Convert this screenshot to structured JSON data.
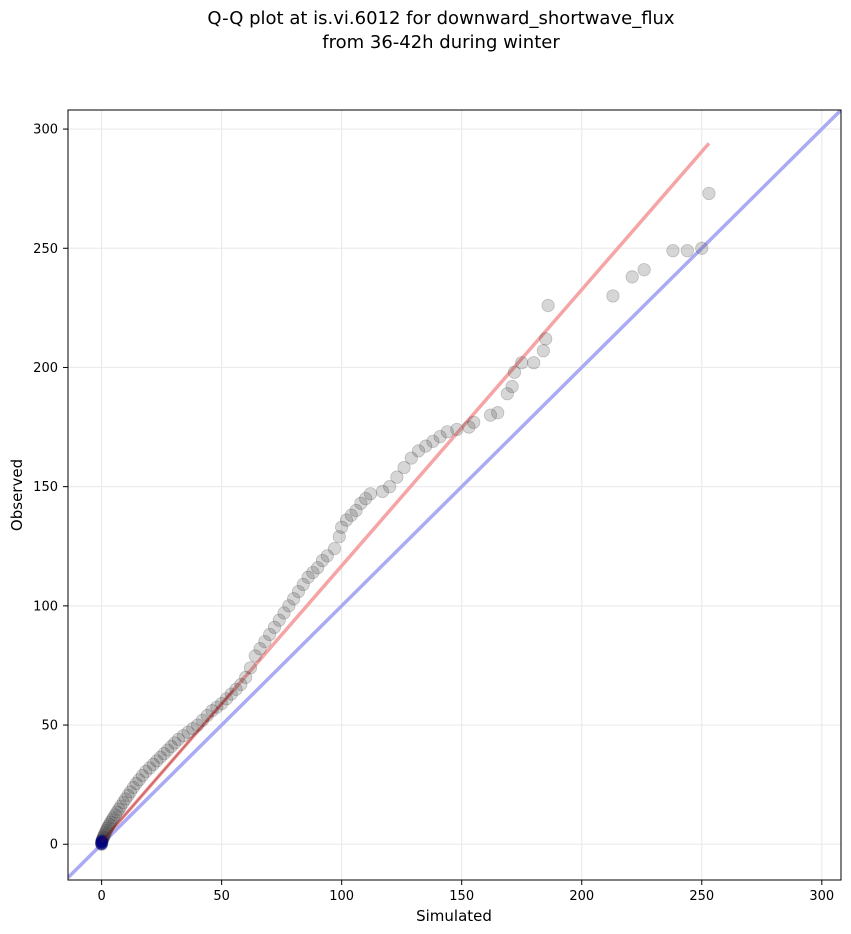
{
  "chart_data": {
    "type": "scatter",
    "title": [
      "Q-Q plot at is.vi.6012 for downward_shortwave_flux",
      "from 36-42h during winter"
    ],
    "xlabel": "Simulated",
    "ylabel": "Observed",
    "xlim": [
      -14,
      308
    ],
    "ylim": [
      -15,
      308
    ],
    "xticks": [
      0,
      50,
      100,
      150,
      200,
      250,
      300
    ],
    "yticks": [
      0,
      50,
      100,
      150,
      200,
      250,
      300
    ],
    "grid": true,
    "colors": {
      "points": "#333333",
      "points_low_fill": "#000080",
      "identity_line": "#aaaaf5",
      "fit_line": "#f5a5a5",
      "fit_overlay": "#8b0000",
      "grid": "#ebebeb"
    },
    "identity_line": {
      "from": [
        -14,
        -14
      ],
      "to": [
        308,
        308
      ]
    },
    "fit_line": {
      "from": [
        0,
        1
      ],
      "to": [
        253,
        294
      ]
    },
    "series": [
      {
        "values": [
          [
            0,
            0
          ],
          [
            0,
            0.5
          ],
          [
            0,
            1
          ],
          [
            0.2,
            1.5
          ],
          [
            0.4,
            2
          ],
          [
            0.6,
            2.5
          ],
          [
            0.8,
            3
          ],
          [
            1,
            3.5
          ],
          [
            1.3,
            4.2
          ],
          [
            1.6,
            5
          ],
          [
            2,
            5.8
          ],
          [
            2.4,
            6.6
          ],
          [
            2.8,
            7.4
          ],
          [
            3.3,
            8.3
          ],
          [
            3.8,
            9.2
          ],
          [
            4.4,
            10.2
          ],
          [
            5,
            11.2
          ],
          [
            5.7,
            12.3
          ],
          [
            6.4,
            13.5
          ],
          [
            7.2,
            14.7
          ],
          [
            8,
            16
          ],
          [
            9,
            17.5
          ],
          [
            10,
            19
          ],
          [
            11,
            20.5
          ],
          [
            12,
            22
          ],
          [
            13.2,
            23.8
          ],
          [
            14.4,
            25.5
          ],
          [
            15.6,
            27
          ],
          [
            17,
            28.8
          ],
          [
            18.4,
            30.5
          ],
          [
            20,
            32
          ],
          [
            21.5,
            33.5
          ],
          [
            23,
            35
          ],
          [
            24.5,
            36.5
          ],
          [
            26,
            38
          ],
          [
            27.5,
            39.5
          ],
          [
            29,
            41
          ],
          [
            30.5,
            42.5
          ],
          [
            32,
            44
          ],
          [
            34,
            45.5
          ],
          [
            36,
            47
          ],
          [
            38,
            48.5
          ],
          [
            40,
            50
          ],
          [
            42,
            52
          ],
          [
            44,
            54
          ],
          [
            46,
            56
          ],
          [
            48,
            57.5
          ],
          [
            50,
            59
          ],
          [
            52,
            61
          ],
          [
            54,
            63
          ],
          [
            56,
            65
          ],
          [
            58,
            67
          ],
          [
            60,
            70
          ],
          [
            62,
            74
          ],
          [
            64,
            79
          ],
          [
            66,
            82
          ],
          [
            68,
            85
          ],
          [
            70,
            88
          ],
          [
            72,
            91
          ],
          [
            74,
            94
          ],
          [
            76,
            97
          ],
          [
            78,
            100
          ],
          [
            80,
            103
          ],
          [
            82,
            106
          ],
          [
            84,
            109
          ],
          [
            86,
            112
          ],
          [
            88,
            114
          ],
          [
            90,
            116
          ],
          [
            92,
            119
          ],
          [
            94,
            121
          ],
          [
            97,
            124
          ],
          [
            99,
            129
          ],
          [
            100,
            133
          ],
          [
            102,
            136
          ],
          [
            104,
            138
          ],
          [
            106,
            140
          ],
          [
            108,
            143
          ],
          [
            110,
            145
          ],
          [
            112,
            147
          ],
          [
            117,
            148
          ],
          [
            120,
            150
          ],
          [
            123,
            154
          ],
          [
            126,
            158
          ],
          [
            129,
            162
          ],
          [
            132,
            165
          ],
          [
            135,
            167
          ],
          [
            138,
            169
          ],
          [
            141,
            171
          ],
          [
            144,
            173
          ],
          [
            148,
            174
          ],
          [
            153,
            175
          ],
          [
            155,
            177
          ],
          [
            162,
            180
          ],
          [
            165,
            181
          ],
          [
            169,
            189
          ],
          [
            171,
            192
          ],
          [
            172,
            198
          ],
          [
            175,
            202
          ],
          [
            180,
            202
          ],
          [
            184,
            207
          ],
          [
            185,
            212
          ],
          [
            186,
            226
          ],
          [
            213,
            230
          ],
          [
            221,
            238
          ],
          [
            226,
            241
          ],
          [
            238,
            249
          ],
          [
            244,
            249
          ],
          [
            250,
            250
          ],
          [
            253,
            273
          ]
        ]
      }
    ]
  }
}
